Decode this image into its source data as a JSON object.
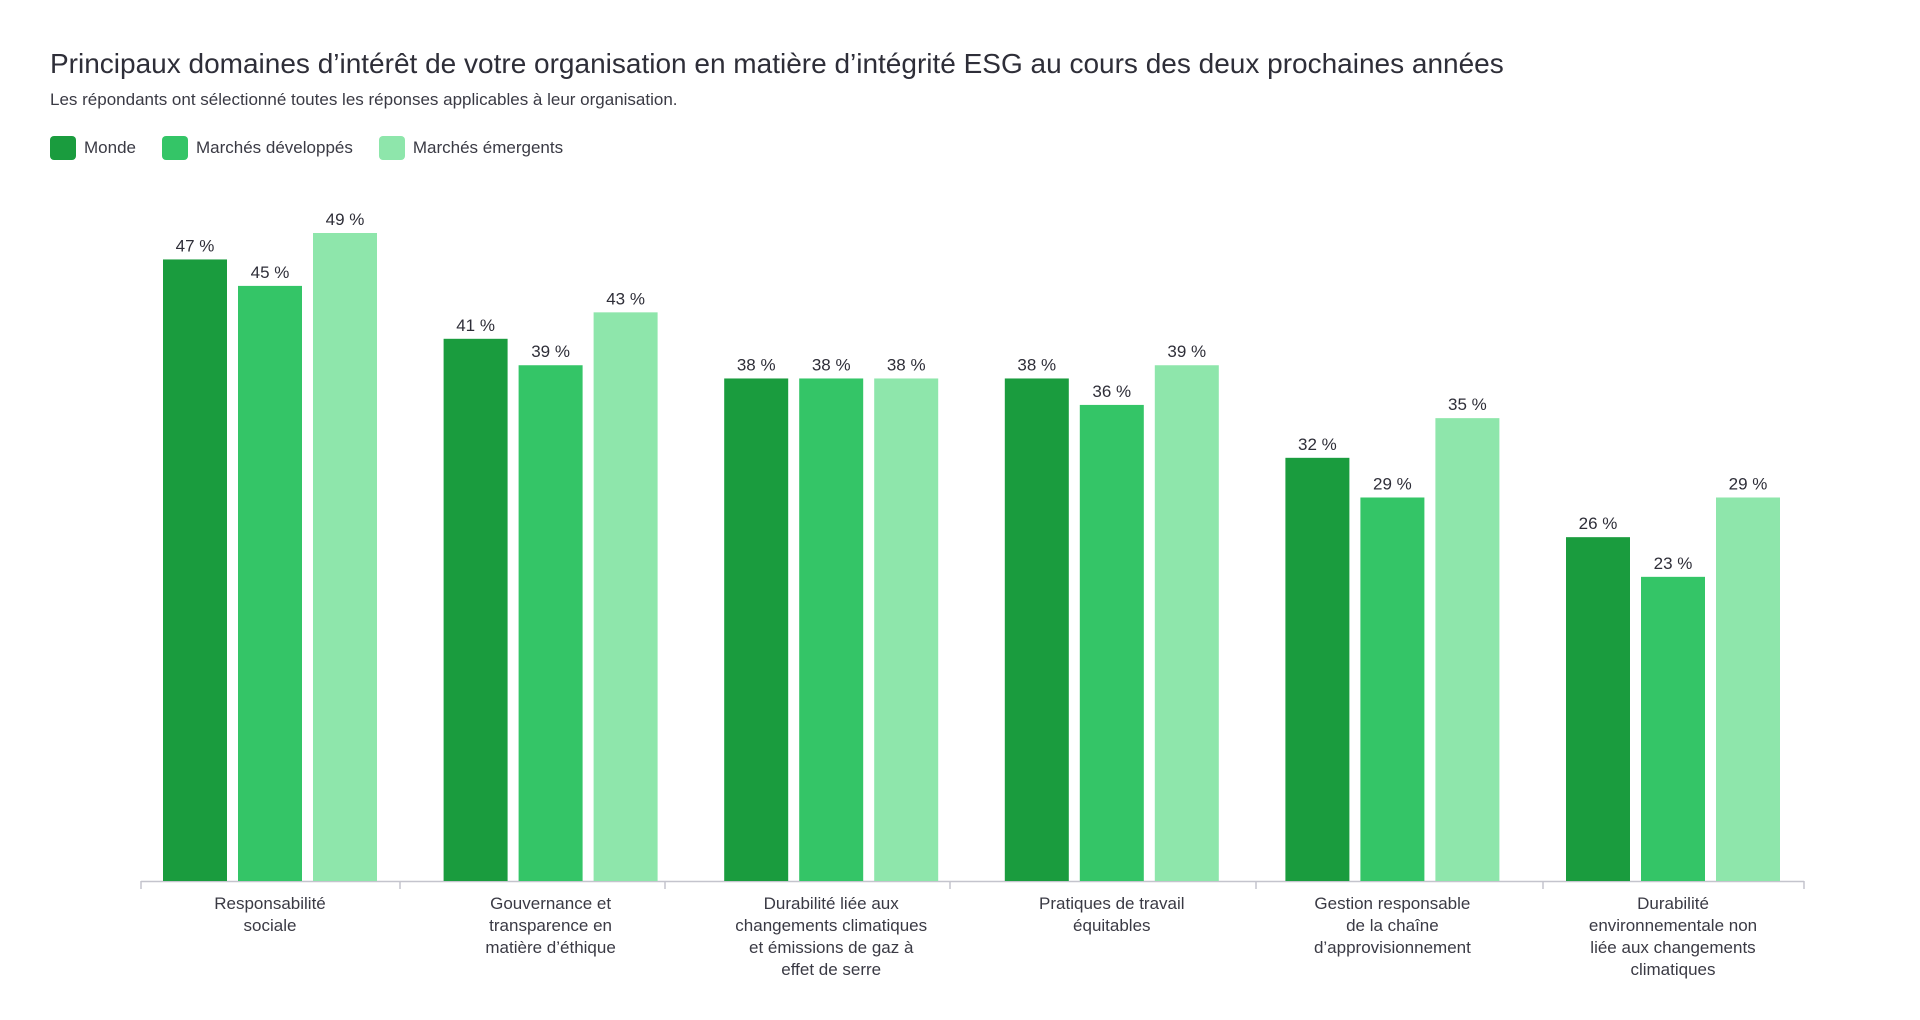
{
  "chart_data": {
    "type": "bar",
    "title": "Principaux domaines d’intérêt de votre organisation en matière d’intégrité ESG au cours des deux prochaines années",
    "subtitle": "Les répondants ont sélectionné toutes les réponses applicables à leur organisation.",
    "categories": [
      [
        "Responsabilité",
        "sociale"
      ],
      [
        "Gouvernance et",
        "transparence en",
        "matière d’éthique"
      ],
      [
        "Durabilité liée aux",
        "changements climatiques",
        "et émissions de gaz à",
        "effet de serre"
      ],
      [
        "Pratiques de travail",
        "équitables"
      ],
      [
        "Gestion responsable",
        "de la chaîne",
        "d’approvisionnement"
      ],
      [
        "Durabilité",
        "environnementale non",
        "liée aux changements",
        "climatiques"
      ]
    ],
    "series": [
      {
        "name": "Monde",
        "color": "#1a9c3e",
        "values": [
          47,
          41,
          38,
          38,
          32,
          26
        ]
      },
      {
        "name": "Marchés développés",
        "color": "#34c567",
        "values": [
          45,
          39,
          38,
          36,
          29,
          23
        ]
      },
      {
        "name": "Marchés émergents",
        "color": "#8ee6ab",
        "values": [
          49,
          43,
          38,
          39,
          35,
          29
        ]
      }
    ],
    "value_suffix": " %",
    "ylim": [
      0,
      49
    ],
    "grid": false,
    "legend_position": "top-left"
  }
}
